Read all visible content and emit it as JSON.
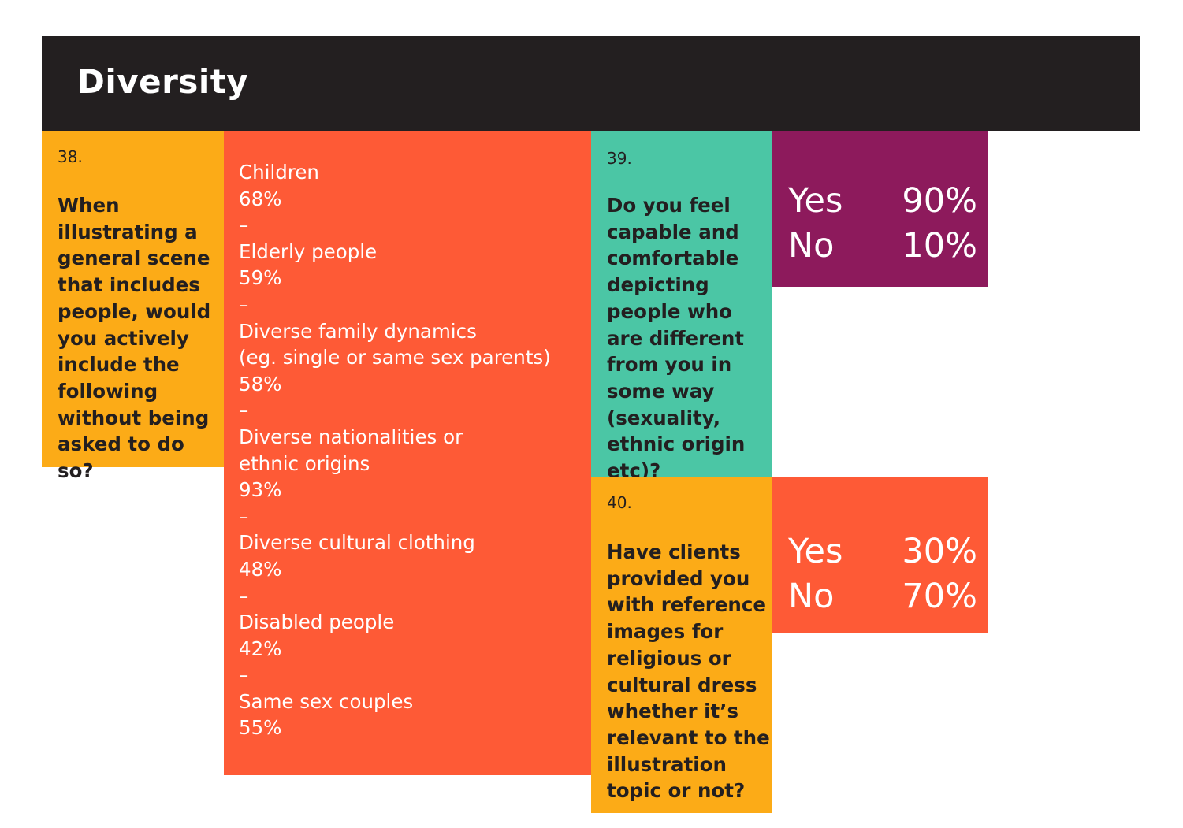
{
  "header": {
    "title": "Diversity"
  },
  "q38": {
    "number": "38.",
    "question": "When illustrating a general scene that includes people, would you actively include the following without being asked to do so?",
    "separator": "–",
    "options": [
      {
        "label": [
          "Children"
        ],
        "value": "68%"
      },
      {
        "label": [
          "Elderly people"
        ],
        "value": "59%"
      },
      {
        "label": [
          "Diverse family dynamics",
          "(eg. single or same sex parents)"
        ],
        "value": "58%"
      },
      {
        "label": [
          "Diverse nationalities or",
          "ethnic origins"
        ],
        "value": "93%"
      },
      {
        "label": [
          "Diverse cultural clothing"
        ],
        "value": "48%"
      },
      {
        "label": [
          "Disabled people"
        ],
        "value": "42%"
      },
      {
        "label": [
          "Same sex couples"
        ],
        "value": "55%"
      }
    ]
  },
  "q39": {
    "number": "39.",
    "question": "Do you feel capable and comfortable depicting people who are different from you in some way (sexuality, ethnic origin etc)?",
    "answers": [
      {
        "label": "Yes",
        "value": "90%"
      },
      {
        "label": "No",
        "value": "10%"
      }
    ]
  },
  "q40": {
    "number": "40.",
    "question": "Have clients provided you with reference images for religious or cultural dress whether it’s relevant to the illustration topic or not?",
    "answers": [
      {
        "label": "Yes",
        "value": "30%"
      },
      {
        "label": "No",
        "value": "70%"
      }
    ]
  },
  "colors": {
    "header_bg": "#231f20",
    "orange": "#fcab17",
    "red": "#fe5a36",
    "teal": "#4bc6a5",
    "purple": "#8d1a5c"
  }
}
